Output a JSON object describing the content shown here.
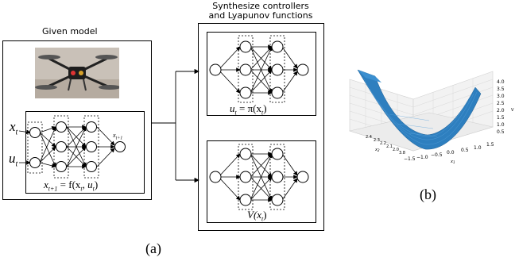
{
  "given_model": {
    "title": "Given model",
    "input_x": "x",
    "input_x_sub": "t",
    "input_u": "u",
    "input_u_sub": "t",
    "output_label": "x",
    "output_label_sub": "t+1",
    "equation": "x_{t+1} = f(x_t, u_t)",
    "equation_main": "x",
    "equation_sub": "t+1",
    "equation_rest": " = f(x",
    "equation_arg1": "t",
    "equation_comma": ", u",
    "equation_arg2": "t",
    "equation_close": ")"
  },
  "synthesize": {
    "title_line1": "Synthesize controllers",
    "title_line2": "and Lyapunov functions",
    "controller_eq_main": "u",
    "controller_eq_sub": "t",
    "controller_eq_rest": " = π(x",
    "controller_eq_arg": "t",
    "controller_eq_close": ")",
    "lyapunov_eq_main": "V(x",
    "lyapunov_eq_arg": "t",
    "lyapunov_eq_close": ")"
  },
  "plot": {
    "z_ticks": [
      "4.0",
      "3.5",
      "3.0",
      "2.5",
      "2.0",
      "1.5",
      "1.0",
      "0.5"
    ],
    "x1_ticks": [
      "−1.5",
      "−1.0",
      "−0.5",
      "0.0",
      "0.5",
      "1.0",
      "1.5"
    ],
    "x2_ticks": [
      "2.4",
      "2.3",
      "2.2",
      "2.1",
      "2.0",
      "3.8"
    ],
    "x1_label": "x",
    "x1_label_sub": "1",
    "x2_label": "x",
    "x2_label_sub": "2",
    "z_label": "V",
    "surface_color": "#2e7fbf"
  },
  "captions": {
    "a": "(a)",
    "b": "(b)"
  }
}
